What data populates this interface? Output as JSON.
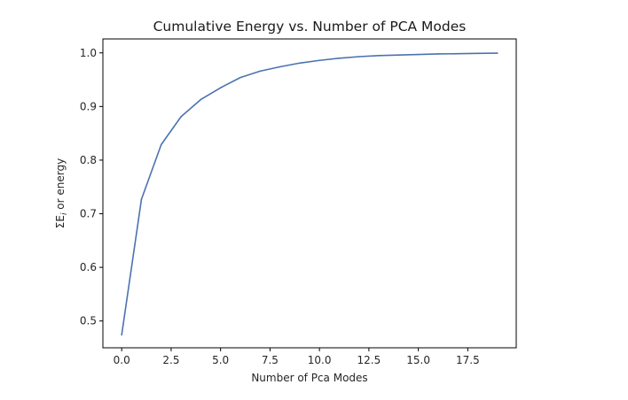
{
  "chart_data": {
    "type": "line",
    "title": "Cumulative Energy vs. Number of PCA Modes",
    "xlabel": "Number of Pca Modes",
    "ylabel": "ΣE",
    "ylabel_sub": "i",
    "ylabel_suffix": " or energy",
    "xlim": [
      -0.95,
      19.95
    ],
    "ylim": [
      0.45,
      1.026
    ],
    "xticks": [
      0,
      2.5,
      5,
      7.5,
      10,
      12.5,
      15,
      17.5
    ],
    "xtick_labels": [
      "0.0",
      "2.5",
      "5.0",
      "7.5",
      "10.0",
      "12.5",
      "15.0",
      "17.5"
    ],
    "yticks": [
      0.5,
      0.6,
      0.7,
      0.8,
      0.9,
      1.0
    ],
    "ytick_labels": [
      "0.5",
      "0.6",
      "0.7",
      "0.8",
      "0.9",
      "1.0"
    ],
    "grid": false,
    "legend": "none",
    "line_color": "#4c72b0",
    "series": [
      {
        "x": [
          0,
          1,
          2,
          3,
          4,
          5,
          6,
          7,
          8,
          9,
          10,
          11,
          12,
          13,
          14,
          15,
          16,
          17,
          18,
          19
        ],
        "values": [
          0.474,
          0.727,
          0.829,
          0.881,
          0.913,
          0.935,
          0.954,
          0.966,
          0.974,
          0.981,
          0.986,
          0.99,
          0.993,
          0.995,
          0.996,
          0.997,
          0.998,
          0.9985,
          0.999,
          0.9995
        ]
      }
    ]
  }
}
